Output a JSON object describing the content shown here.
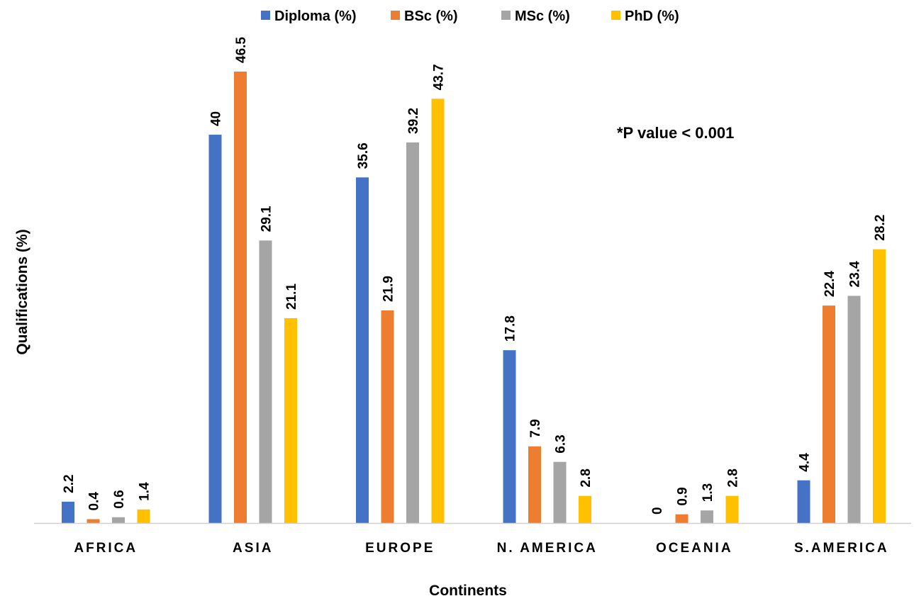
{
  "chart_data": {
    "type": "bar",
    "title": "",
    "xlabel": "Continents",
    "ylabel": "Qualifications (%)",
    "annotation": "*P value < 0.001",
    "legend_position": "top",
    "grid": false,
    "ylim": [
      0,
      47
    ],
    "categories": [
      "AFRICA",
      "ASIA",
      "EUROPE",
      "N. AMERICA",
      "OCEANIA",
      "S.AMERICA"
    ],
    "series": [
      {
        "name": "Diploma (%)",
        "color": "#4472C4",
        "values": [
          2.2,
          40,
          35.6,
          17.8,
          0,
          4.4
        ]
      },
      {
        "name": "BSc (%)",
        "color": "#ED7D31",
        "values": [
          0.4,
          46.5,
          21.9,
          7.9,
          0.9,
          22.4
        ]
      },
      {
        "name": "MSc (%)",
        "color": "#A5A5A5",
        "values": [
          0.6,
          29.1,
          39.2,
          6.3,
          1.3,
          23.4
        ]
      },
      {
        "name": "PhD (%)",
        "color": "#FFC000",
        "values": [
          1.4,
          21.1,
          43.7,
          2.8,
          2.8,
          28.2
        ]
      }
    ]
  }
}
